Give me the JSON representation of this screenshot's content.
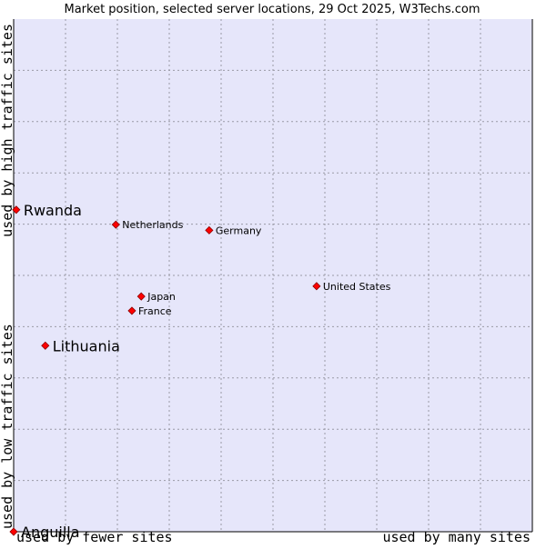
{
  "chart_data": {
    "type": "scatter",
    "title": "Market position, selected server locations, 29 Oct 2025, W3Techs.com",
    "xlabel_left": "used by fewer sites",
    "xlabel_right": "used by many sites",
    "ylabel_bottom": "used by low traffic sites",
    "ylabel_top": "used by high traffic sites",
    "xlim": [
      0,
      100
    ],
    "ylim": [
      0,
      100
    ],
    "grid": true,
    "colors": {
      "plot_background": "#e6e6fa",
      "grid": "#9a9aa6",
      "border": "#000000",
      "point": "#ff0000",
      "point_stroke": "#8b0000"
    },
    "points": [
      {
        "label": "Rwanda",
        "x": 0.5,
        "y": 62.8,
        "emphasis": true
      },
      {
        "label": "Netherlands",
        "x": 19.7,
        "y": 59.9,
        "emphasis": false
      },
      {
        "label": "Germany",
        "x": 37.7,
        "y": 58.8,
        "emphasis": false
      },
      {
        "label": "United States",
        "x": 58.4,
        "y": 47.9,
        "emphasis": false
      },
      {
        "label": "Japan",
        "x": 24.6,
        "y": 45.9,
        "emphasis": false
      },
      {
        "label": "France",
        "x": 22.8,
        "y": 43.1,
        "emphasis": false
      },
      {
        "label": "Lithuania",
        "x": 6.1,
        "y": 36.3,
        "emphasis": true
      },
      {
        "label": "Anguilla",
        "x": 0.0,
        "y": 0.0,
        "emphasis": true
      }
    ]
  }
}
